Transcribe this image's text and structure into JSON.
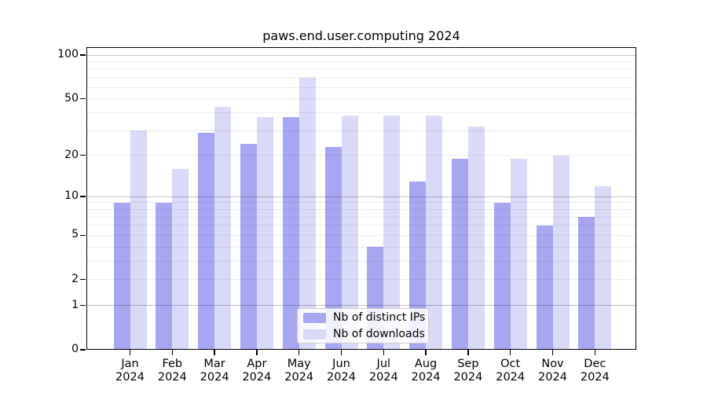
{
  "title": "paws.end.user.computing 2024",
  "colors": {
    "distinct_ips_bar": "#a6a6f2",
    "downloads_bar": "#d9d9f8",
    "grid_major": "rgba(0,0,0,0.24)",
    "grid_minor": "rgba(0,0,0,0.065)",
    "axis": "#000000",
    "legend_border": "#cccccc"
  },
  "legend": {
    "items": [
      {
        "label": "Nb of distinct IPs"
      },
      {
        "label": "Nb of downloads"
      }
    ]
  },
  "chart_data": {
    "type": "bar",
    "title": "paws.end.user.computing 2024",
    "categories": [
      "Jan",
      "Feb",
      "Mar",
      "Apr",
      "May",
      "Jun",
      "Jul",
      "Aug",
      "Sep",
      "Oct",
      "Nov",
      "Dec"
    ],
    "x_year_label": "2024",
    "series": [
      {
        "name": "Nb of distinct IPs",
        "color": "#a6a6f2",
        "values": [
          9,
          9,
          29,
          24,
          37,
          23,
          4,
          13,
          19,
          9,
          6,
          7
        ]
      },
      {
        "name": "Nb of downloads",
        "color": "#d9d9f8",
        "values": [
          30,
          16,
          44,
          37,
          70,
          38,
          38,
          38,
          32,
          19,
          20,
          12
        ]
      }
    ],
    "yscale": "log1p",
    "ylim": [
      0,
      110
    ],
    "yticks": [
      0,
      1,
      2,
      5,
      10,
      20,
      50,
      100
    ],
    "y_tick_labels": [
      "0",
      "1",
      "2",
      "5",
      "10",
      "20",
      "50",
      "100"
    ],
    "grid_major_values": [
      1,
      10,
      100
    ],
    "grid_minor_values": [
      2,
      3,
      4,
      5,
      6,
      7,
      8,
      9,
      20,
      30,
      40,
      50,
      60,
      70,
      80,
      90
    ],
    "grid": true,
    "legend_position": "lower center"
  }
}
